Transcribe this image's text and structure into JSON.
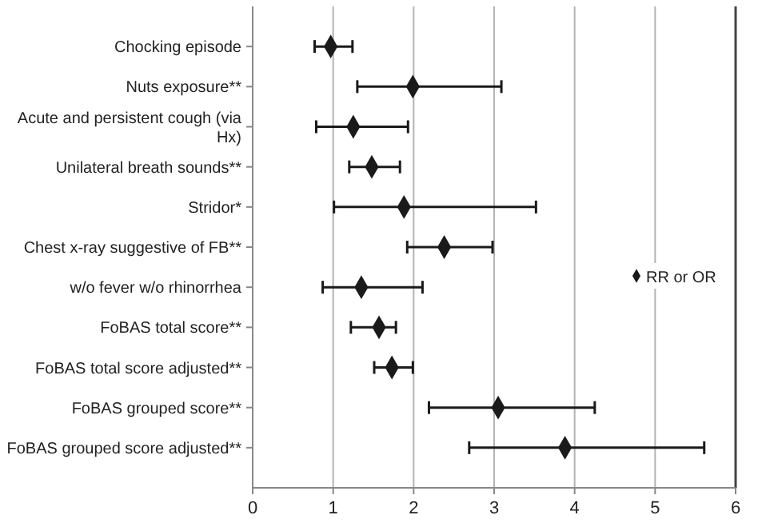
{
  "chart_data": {
    "type": "scatter",
    "orientation": "horizontal",
    "categories": [
      "Chocking episode",
      "Nuts exposure**",
      "Acute and persistent cough (via Hx)",
      "Unilateral breath sounds**",
      "Stridor*",
      "Chest x-ray suggestive of FB**",
      "w/o fever w/o rhinorrhea",
      "FoBAS total score**",
      "FoBAS total score adjusted**",
      "FoBAS grouped score**",
      "FoBAS grouped score adjusted**"
    ],
    "series": [
      {
        "name": "RR or OR",
        "color": "#1a1a1a",
        "values": [
          0.97,
          1.99,
          1.25,
          1.48,
          1.88,
          2.38,
          1.35,
          1.57,
          1.73,
          3.05,
          3.88
        ],
        "errors": [
          [
            0.77,
            1.24
          ],
          [
            1.3,
            3.09
          ],
          [
            0.79,
            1.93
          ],
          [
            1.2,
            1.83
          ],
          [
            1.01,
            3.52
          ],
          [
            1.92,
            2.98
          ],
          [
            0.87,
            2.11
          ],
          [
            1.22,
            1.78
          ],
          [
            1.51,
            1.99
          ],
          [
            2.19,
            4.25
          ],
          [
            2.69,
            5.61
          ]
        ]
      }
    ],
    "xlim": [
      0,
      6
    ],
    "xticks": [
      0,
      1,
      2,
      3,
      4,
      5,
      6
    ],
    "grid": "x",
    "legend": "right",
    "marker": "diamond"
  }
}
